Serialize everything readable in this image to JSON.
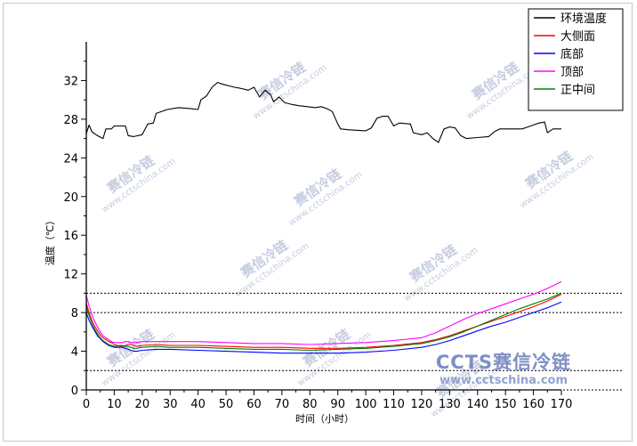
{
  "chart_data": {
    "type": "line",
    "xlabel": "时间（小时）",
    "ylabel": "温度（℃）",
    "xlim": [
      0,
      170
    ],
    "ylim": [
      0,
      36
    ],
    "xticks": [
      0,
      10,
      20,
      30,
      40,
      50,
      60,
      70,
      80,
      90,
      100,
      110,
      120,
      130,
      140,
      150,
      160,
      170
    ],
    "yticks": [
      0,
      4,
      8,
      12,
      16,
      20,
      24,
      28,
      32
    ],
    "grid": false,
    "legend_position": "top-right",
    "reference_lines_y": [
      10,
      8,
      2,
      0
    ],
    "series": [
      {
        "name": "环境温度",
        "color": "#000000",
        "x": [
          0,
          1,
          2,
          4,
          6,
          7,
          9,
          10,
          14,
          15,
          17,
          20,
          22,
          24,
          25,
          29,
          33,
          37,
          40,
          41,
          43,
          45,
          47,
          49,
          53,
          55,
          58,
          60,
          62,
          64,
          66,
          67,
          69,
          71,
          74,
          76,
          79,
          82,
          84,
          86,
          88,
          90,
          91,
          94,
          100,
          102,
          104,
          106,
          108,
          110,
          112,
          116,
          117,
          120,
          122,
          124,
          126,
          128,
          130,
          132,
          134,
          136,
          140,
          144,
          146,
          148,
          156,
          158,
          160,
          162,
          164,
          165,
          167,
          170
        ],
        "y": [
          26.5,
          27.4,
          26.7,
          26.3,
          26.0,
          27.0,
          27.0,
          27.3,
          27.3,
          26.3,
          26.2,
          26.4,
          27.5,
          27.6,
          28.6,
          29.0,
          29.2,
          29.1,
          29.0,
          30.0,
          30.4,
          31.3,
          31.8,
          31.6,
          31.3,
          31.2,
          31.0,
          31.3,
          30.3,
          31.0,
          30.5,
          29.8,
          30.3,
          29.7,
          29.5,
          29.4,
          29.3,
          29.2,
          29.3,
          29.1,
          28.8,
          27.5,
          27.0,
          26.9,
          26.8,
          27.1,
          28.1,
          28.3,
          28.3,
          27.3,
          27.6,
          27.5,
          26.6,
          26.4,
          26.6,
          26.0,
          25.6,
          27.0,
          27.2,
          27.1,
          26.3,
          26.0,
          26.1,
          26.2,
          26.7,
          27.0,
          27.0,
          27.2,
          27.4,
          27.6,
          27.7,
          26.6,
          27.0,
          27.0
        ]
      },
      {
        "name": "大侧面",
        "color": "#ff0000",
        "x": [
          0,
          1,
          2,
          3,
          4,
          5,
          6,
          7,
          8,
          9,
          10,
          11,
          12,
          13,
          14,
          15,
          16,
          17,
          18,
          20,
          25,
          30,
          40,
          50,
          60,
          70,
          80,
          90,
          100,
          110,
          120,
          125,
          130,
          135,
          140,
          145,
          150,
          155,
          160,
          165,
          170
        ],
        "y": [
          9.0,
          8.0,
          7.2,
          6.6,
          6.1,
          5.7,
          5.4,
          5.2,
          5.0,
          4.9,
          4.7,
          4.6,
          4.5,
          4.5,
          4.6,
          4.7,
          4.7,
          4.6,
          4.5,
          4.6,
          4.7,
          4.6,
          4.6,
          4.5,
          4.4,
          4.4,
          4.3,
          4.3,
          4.4,
          4.6,
          4.9,
          5.2,
          5.6,
          6.1,
          6.6,
          7.1,
          7.6,
          8.1,
          8.6,
          9.2,
          9.9
        ]
      },
      {
        "name": "底部",
        "color": "#0000ff",
        "x": [
          0,
          1,
          2,
          3,
          4,
          5,
          6,
          7,
          8,
          9,
          10,
          11,
          12,
          13,
          14,
          15,
          16,
          17,
          18,
          20,
          25,
          30,
          40,
          50,
          60,
          70,
          80,
          90,
          100,
          110,
          120,
          125,
          130,
          135,
          140,
          145,
          150,
          155,
          160,
          165,
          170
        ],
        "y": [
          8.0,
          7.2,
          6.6,
          6.1,
          5.6,
          5.3,
          5.0,
          4.8,
          4.6,
          4.5,
          4.4,
          4.4,
          4.4,
          4.4,
          4.3,
          4.2,
          4.1,
          4.0,
          4.0,
          4.1,
          4.2,
          4.2,
          4.1,
          4.0,
          3.9,
          3.8,
          3.8,
          3.8,
          3.9,
          4.1,
          4.4,
          4.7,
          5.1,
          5.6,
          6.1,
          6.6,
          7.0,
          7.5,
          8.0,
          8.5,
          9.1
        ]
      },
      {
        "name": "顶部",
        "color": "#ff00ff",
        "x": [
          0,
          1,
          2,
          3,
          4,
          5,
          6,
          7,
          8,
          9,
          10,
          11,
          12,
          13,
          14,
          15,
          16,
          17,
          18,
          20,
          25,
          30,
          40,
          50,
          60,
          70,
          80,
          90,
          100,
          110,
          120,
          125,
          130,
          135,
          140,
          145,
          150,
          155,
          160,
          165,
          170
        ],
        "y": [
          9.8,
          8.7,
          7.8,
          7.1,
          6.5,
          6.0,
          5.6,
          5.4,
          5.2,
          5.0,
          4.9,
          4.9,
          4.9,
          4.9,
          5.0,
          5.0,
          4.9,
          4.9,
          4.9,
          5.0,
          5.0,
          5.0,
          5.0,
          4.9,
          4.8,
          4.8,
          4.7,
          4.8,
          4.9,
          5.1,
          5.4,
          5.9,
          6.6,
          7.3,
          7.9,
          8.4,
          8.9,
          9.4,
          9.9,
          10.5,
          11.2
        ]
      },
      {
        "name": "正中间",
        "color": "#008000",
        "x": [
          0,
          1,
          2,
          3,
          4,
          5,
          6,
          7,
          8,
          9,
          10,
          11,
          12,
          13,
          14,
          15,
          16,
          17,
          18,
          20,
          25,
          30,
          40,
          50,
          60,
          70,
          80,
          90,
          100,
          110,
          120,
          125,
          130,
          135,
          140,
          145,
          150,
          155,
          160,
          165,
          170
        ],
        "y": [
          8.6,
          7.7,
          6.9,
          6.3,
          5.8,
          5.4,
          5.1,
          4.9,
          4.7,
          4.6,
          4.5,
          4.5,
          4.6,
          4.6,
          4.5,
          4.5,
          4.4,
          4.3,
          4.3,
          4.4,
          4.5,
          4.4,
          4.4,
          4.3,
          4.2,
          4.2,
          4.1,
          4.2,
          4.3,
          4.5,
          4.8,
          5.1,
          5.5,
          6.0,
          6.6,
          7.2,
          7.8,
          8.4,
          8.9,
          9.4,
          10.0
        ]
      }
    ]
  },
  "watermark": {
    "text": "赛信冷链",
    "url": "www.cctschina.com",
    "brand": "CCTS赛信冷链",
    "brand_url": "www.cctschina.com"
  }
}
